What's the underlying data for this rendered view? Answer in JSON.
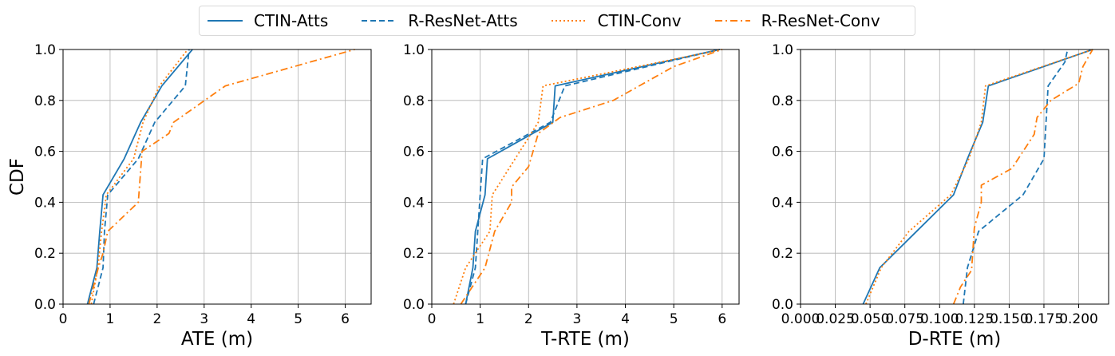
{
  "legend": [
    {
      "name": "CTIN-Atts",
      "color": "#1f77b4",
      "dash": "solid"
    },
    {
      "name": "R-ResNet-Atts",
      "color": "#1f77b4",
      "dash": "dashed"
    },
    {
      "name": "CTIN-Conv",
      "color": "#ff7f0e",
      "dash": "dotted"
    },
    {
      "name": "R-ResNet-Conv",
      "color": "#ff7f0e",
      "dash": "dashdot"
    }
  ],
  "chart_data": [
    {
      "type": "line",
      "xlabel": "ATE (m)",
      "ylabel": "CDF",
      "xlim": [
        0,
        6.55
      ],
      "ylim": [
        0,
        1.0
      ],
      "xticks": [
        "0",
        "1",
        "2",
        "3",
        "4",
        "5",
        "6"
      ],
      "yticks": [
        "0.0",
        "0.2",
        "0.4",
        "0.6",
        "0.8",
        "1.0"
      ],
      "grid": true,
      "series": [
        {
          "name": "CTIN-Atts",
          "x": [
            0.52,
            0.72,
            0.78,
            0.85,
            1.3,
            1.65,
            2.1,
            2.75
          ],
          "y": [
            0.0,
            0.143,
            0.286,
            0.429,
            0.571,
            0.714,
            0.857,
            1.0
          ]
        },
        {
          "name": "R-ResNet-Atts",
          "x": [
            0.65,
            0.85,
            0.88,
            0.95,
            1.6,
            1.95,
            2.6,
            2.68
          ],
          "y": [
            0.0,
            0.143,
            0.286,
            0.429,
            0.571,
            0.714,
            0.857,
            1.0
          ]
        },
        {
          "name": "CTIN-Conv",
          "x": [
            0.6,
            0.74,
            0.82,
            0.92,
            1.5,
            1.7,
            2.05,
            2.65
          ],
          "y": [
            0.0,
            0.143,
            0.286,
            0.429,
            0.571,
            0.714,
            0.857,
            1.0
          ]
        },
        {
          "name": "R-ResNet-Conv",
          "x": [
            0.55,
            0.75,
            0.85,
            0.95,
            1.6,
            1.68,
            2.25,
            2.35,
            3.45,
            6.2
          ],
          "y": [
            0.0,
            0.143,
            0.2,
            0.286,
            0.4,
            0.6,
            0.67,
            0.714,
            0.857,
            1.0
          ]
        }
      ]
    },
    {
      "type": "line",
      "xlabel": "T-RTE (m)",
      "ylabel": "",
      "xlim": [
        0,
        6.35
      ],
      "ylim": [
        0,
        1.0
      ],
      "xticks": [
        "0",
        "1",
        "2",
        "3",
        "4",
        "5",
        "6"
      ],
      "yticks": [
        "0.0",
        "0.2",
        "0.4",
        "0.6",
        "0.8",
        "1.0"
      ],
      "grid": true,
      "series": [
        {
          "name": "CTIN-Atts",
          "x": [
            0.7,
            0.85,
            0.9,
            1.1,
            1.15,
            2.5,
            2.55,
            5.95
          ],
          "y": [
            0.0,
            0.143,
            0.286,
            0.429,
            0.571,
            0.714,
            0.857,
            1.0
          ]
        },
        {
          "name": "R-ResNet-Atts",
          "x": [
            0.7,
            0.9,
            1.0,
            1.05,
            2.45,
            2.75,
            5.95
          ],
          "y": [
            0.0,
            0.143,
            0.429,
            0.571,
            0.714,
            0.857,
            1.0
          ]
        },
        {
          "name": "CTIN-Conv",
          "x": [
            0.45,
            0.7,
            1.2,
            1.25,
            2.2,
            2.3,
            6.0
          ],
          "y": [
            0.0,
            0.143,
            0.286,
            0.429,
            0.714,
            0.857,
            1.0
          ]
        },
        {
          "name": "R-ResNet-Conv",
          "x": [
            0.6,
            1.1,
            1.3,
            1.65,
            1.65,
            2.0,
            2.2,
            2.65,
            3.75,
            5.0,
            6.0
          ],
          "y": [
            0.0,
            0.143,
            0.286,
            0.4,
            0.46,
            0.54,
            0.67,
            0.733,
            0.8,
            0.933,
            1.0
          ]
        }
      ]
    },
    {
      "type": "line",
      "xlabel": "D-RTE (m)",
      "ylabel": "",
      "xlim": [
        0,
        0.2215
      ],
      "ylim": [
        0,
        1.0
      ],
      "xticks": [
        "0.000",
        "0.025",
        "0.050",
        "0.075",
        "0.100",
        "0.125",
        "0.150",
        "0.175",
        "0.200"
      ],
      "yticks": [
        "0.0",
        "0.2",
        "0.4",
        "0.6",
        "0.8",
        "1.0"
      ],
      "grid": true,
      "series": [
        {
          "name": "CTIN-Atts",
          "x": [
            0.045,
            0.057,
            0.11,
            0.12,
            0.131,
            0.135,
            0.21
          ],
          "y": [
            0.0,
            0.143,
            0.429,
            0.571,
            0.714,
            0.857,
            1.0
          ]
        },
        {
          "name": "R-ResNet-Atts",
          "x": [
            0.117,
            0.12,
            0.128,
            0.16,
            0.175,
            0.178,
            0.19,
            0.192
          ],
          "y": [
            0.0,
            0.143,
            0.286,
            0.429,
            0.571,
            0.857,
            0.95,
            1.0
          ]
        },
        {
          "name": "CTIN-Conv",
          "x": [
            0.047,
            0.058,
            0.078,
            0.108,
            0.121,
            0.13,
            0.133,
            0.21
          ],
          "y": [
            0.0,
            0.143,
            0.286,
            0.429,
            0.571,
            0.714,
            0.857,
            1.0
          ]
        },
        {
          "name": "R-ResNet-Conv",
          "x": [
            0.11,
            0.115,
            0.123,
            0.125,
            0.13,
            0.13,
            0.152,
            0.168,
            0.17,
            0.18,
            0.2,
            0.203,
            0.21
          ],
          "y": [
            0.0,
            0.067,
            0.133,
            0.3,
            0.4,
            0.467,
            0.533,
            0.667,
            0.733,
            0.8,
            0.867,
            0.933,
            1.0
          ]
        }
      ]
    }
  ]
}
